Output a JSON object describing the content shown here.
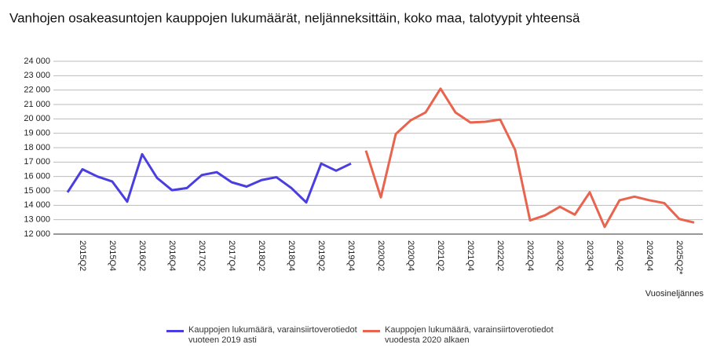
{
  "chart_data": {
    "type": "line",
    "title": "Vanhojen osakeasuntojen kauppojen lukumäärät, neljänneksittäin, koko maa, talotyypit yhteensä",
    "x_label": "Vuosineljännes",
    "categories": [
      null,
      "2015Q2",
      null,
      "2015Q4",
      null,
      "2016Q2",
      null,
      "2016Q4",
      null,
      "2017Q2",
      null,
      "2017Q4",
      null,
      "2018Q2",
      null,
      "2018Q4",
      null,
      "2019Q2",
      null,
      "2019Q4",
      null,
      "2020Q2",
      null,
      "2020Q4",
      null,
      "2021Q2",
      null,
      "2021Q4",
      null,
      "2022Q2",
      null,
      "2022Q4",
      null,
      "2023Q2",
      null,
      "2023Q4",
      null,
      "2024Q2",
      null,
      "2024Q4",
      null,
      "2025Q2*",
      null
    ],
    "series": [
      {
        "name": "Kauppojen lukumäärä, varainsiirtoverotiedot vuoteen 2019 asti",
        "color": "#4a3ee0",
        "values": [
          14900,
          16500,
          16000,
          15650,
          14250,
          17550,
          15900,
          15050,
          15200,
          16100,
          16300,
          15600,
          15300,
          15750,
          15950,
          15200,
          14200,
          16900,
          16400,
          16900,
          null,
          null,
          null,
          null,
          null,
          null,
          null,
          null,
          null,
          null,
          null,
          null,
          null,
          null,
          null,
          null,
          null,
          null,
          null,
          null,
          null,
          null,
          null
        ]
      },
      {
        "name": "Kauppojen lukumäärä, varainsiirtoverotiedot vuodesta 2020 alkaen",
        "color": "#e8644f",
        "values": [
          null,
          null,
          null,
          null,
          null,
          null,
          null,
          null,
          null,
          null,
          null,
          null,
          null,
          null,
          null,
          null,
          null,
          null,
          null,
          null,
          17800,
          14550,
          18950,
          19900,
          20450,
          22100,
          20450,
          19750,
          19800,
          19950,
          17850,
          12950,
          13300,
          13900,
          13350,
          14900,
          12500,
          14350,
          14600,
          14350,
          14150,
          13050,
          12800
        ]
      }
    ],
    "ylim": [
      12000,
      24000
    ],
    "yticks": [
      {
        "value": 12000,
        "label": "12 000"
      },
      {
        "value": 13000,
        "label": "13 000"
      },
      {
        "value": 14000,
        "label": "14 000"
      },
      {
        "value": 15000,
        "label": "15 000"
      },
      {
        "value": 16000,
        "label": "16 000"
      },
      {
        "value": 17000,
        "label": "17 000"
      },
      {
        "value": 18000,
        "label": "18 000"
      },
      {
        "value": 19000,
        "label": "19 000"
      },
      {
        "value": 20000,
        "label": "20 000"
      },
      {
        "value": 21000,
        "label": "21 000"
      },
      {
        "value": 22000,
        "label": "22 000"
      },
      {
        "value": 23000,
        "label": "23 000"
      },
      {
        "value": 24000,
        "label": "24 000"
      }
    ],
    "grid": true,
    "legend": "bottom"
  }
}
